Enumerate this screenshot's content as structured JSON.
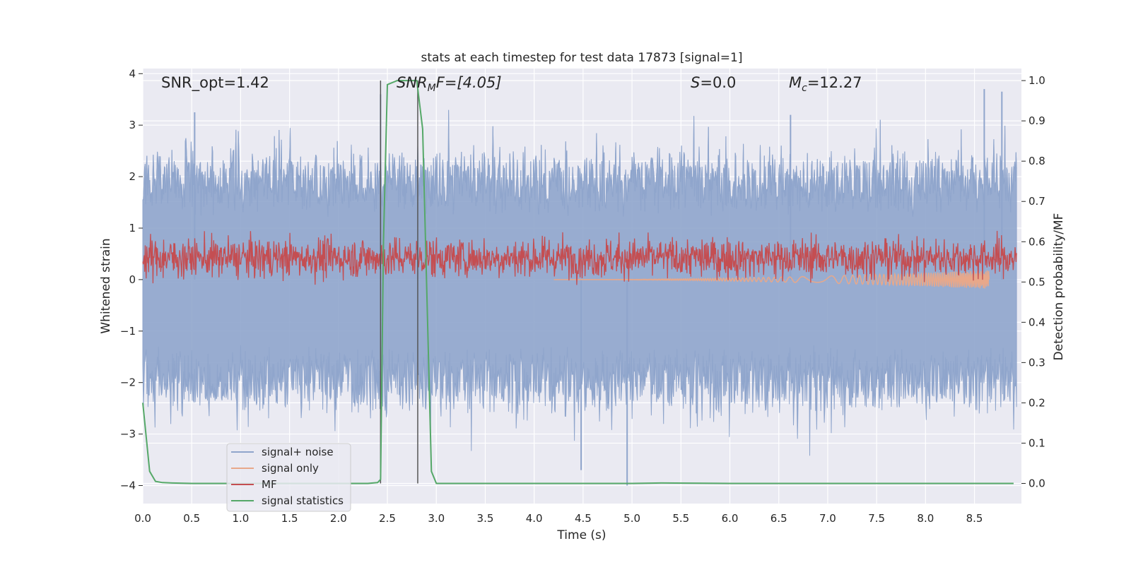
{
  "chart_data": {
    "type": "line",
    "title": "stats at each timestep for test data 17873 [signal=1]",
    "xlabel": "Time (s)",
    "ylabel_left": "Whitened strain",
    "ylabel_right": "Detection probability/MF",
    "xlim": [
      0.0,
      8.98
    ],
    "ylim_left": [
      -4.35,
      4.1
    ],
    "ylim_right": [
      -0.05,
      1.03
    ],
    "x_ticks": [
      "0.0",
      "0.5",
      "1.0",
      "1.5",
      "2.0",
      "2.5",
      "3.0",
      "3.5",
      "4.0",
      "4.5",
      "5.0",
      "5.5",
      "6.0",
      "6.5",
      "7.0",
      "7.5",
      "8.0",
      "8.5"
    ],
    "y_ticks_left": [
      "4",
      "3",
      "2",
      "1",
      "0",
      "−1",
      "−2",
      "−3",
      "−4"
    ],
    "y_ticks_right": [
      "1.0",
      "0.9",
      "0.8",
      "0.7",
      "0.6",
      "0.5",
      "0.4",
      "0.3",
      "0.2",
      "0.1",
      "0.0"
    ],
    "grid": true,
    "legend_placement": "lower-left",
    "annotations": {
      "snr_opt": "SNR_opt=1.42",
      "snr_mf_main": "SNR",
      "snr_mf_sub": "M",
      "snr_mf_rest": "F=[4.05]",
      "s_main": "S",
      "s_rest": "=0.0",
      "mc_main": "M",
      "mc_sub": "c",
      "mc_rest": "=12.27"
    },
    "vertical_markers": [
      2.43,
      2.81
    ],
    "series": [
      {
        "name": "signal+ noise",
        "color": "#8fa5cc",
        "axis": "left",
        "envelope_low": -2.3,
        "envelope_high": 2.2,
        "peak_max": 3.7,
        "peak_min": -4.0
      },
      {
        "name": "signal only",
        "color": "#e8a88a",
        "axis": "left",
        "chirp_start": 4.2,
        "chirp_end": 8.65,
        "max_amplitude": 0.18
      },
      {
        "name": "MF",
        "color": "#c44e52",
        "axis": "right",
        "center": 0.56,
        "band": [
          0.5,
          0.63
        ]
      },
      {
        "name": "signal statistics",
        "color": "#55a868",
        "axis": "right",
        "x": [
          0.0,
          0.07,
          0.13,
          0.2,
          0.3,
          0.5,
          1.0,
          1.5,
          2.0,
          2.3,
          2.4,
          2.43,
          2.46,
          2.5,
          2.6,
          2.7,
          2.8,
          2.86,
          2.95,
          3.0,
          3.2,
          4.0,
          5.0,
          5.3,
          6.0,
          7.0,
          8.0,
          8.9
        ],
        "y": [
          0.2,
          0.03,
          0.005,
          0.002,
          0.001,
          0.0,
          0.0,
          0.0,
          0.0,
          0.0,
          0.002,
          0.01,
          0.6,
          0.99,
          1.0,
          1.0,
          1.0,
          0.88,
          0.03,
          0.0,
          0.0,
          0.0,
          0.0,
          0.001,
          0.0,
          0.0,
          0.0,
          0.0
        ]
      }
    ]
  }
}
